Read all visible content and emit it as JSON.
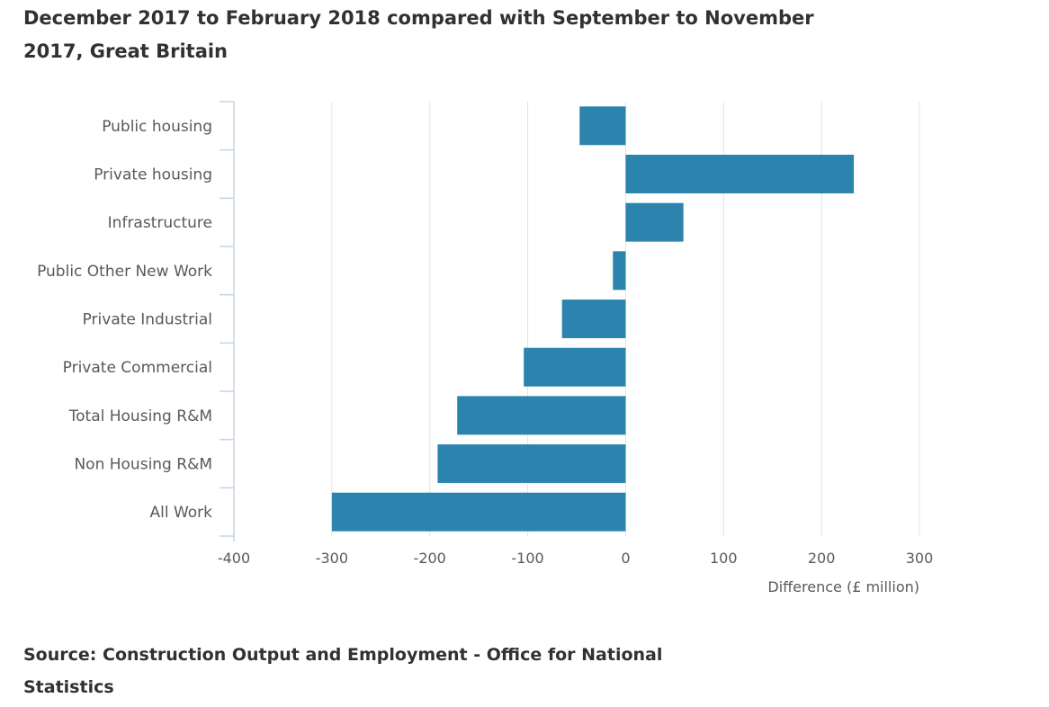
{
  "chart_data": {
    "type": "bar",
    "orientation": "horizontal",
    "title": "December 2017 to February 2018 compared with September to November 2017, Great Britain",
    "categories": [
      "Public housing",
      "Private housing",
      "Infrastructure",
      "Public Other New Work",
      "Private Industrial",
      "Private Commercial",
      "Total Housing R&M",
      "Non Housing R&M",
      "All Work"
    ],
    "values": [
      -47,
      233,
      59,
      -13,
      -65,
      -104,
      -172,
      -192,
      -300
    ],
    "xlabel": "Difference (£ million)",
    "ylabel": "",
    "xlim": [
      -400,
      300
    ],
    "xticks": [
      "-400",
      "-300",
      "-200",
      "-100",
      "0",
      "100",
      "200",
      "300"
    ],
    "grid": true,
    "bar_color": "#2a84ad",
    "source": "Source: Construction Output and Employment - Office for National Statistics"
  }
}
